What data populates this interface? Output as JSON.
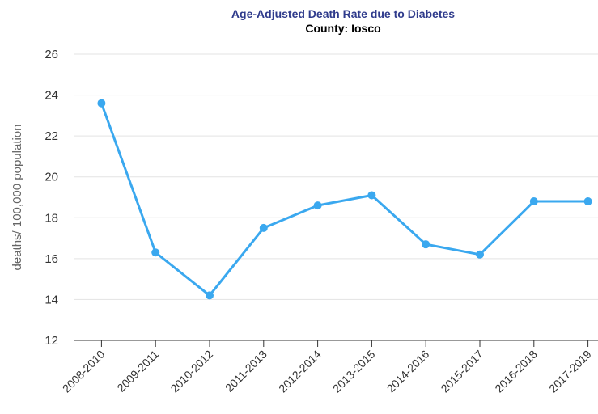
{
  "chart_data": {
    "type": "line",
    "title": "Age-Adjusted Death Rate due to Diabetes",
    "subtitle": "County: Iosco",
    "y_label": "deaths/ 100,000 population",
    "categories": [
      "2008-2010",
      "2009-2011",
      "2010-2012",
      "2011-2013",
      "2012-2014",
      "2013-2015",
      "2014-2016",
      "2015-2017",
      "2016-2018",
      "2017-2019"
    ],
    "series": [
      {
        "name": "Iosco",
        "color": "#3aa8ef",
        "values": [
          23.6,
          16.3,
          14.2,
          17.5,
          18.6,
          19.1,
          16.7,
          16.2,
          18.8,
          18.8
        ]
      }
    ],
    "ylim": [
      12,
      26
    ],
    "yticks": [
      12,
      14,
      16,
      18,
      20,
      22,
      24,
      26
    ],
    "grid": true
  }
}
